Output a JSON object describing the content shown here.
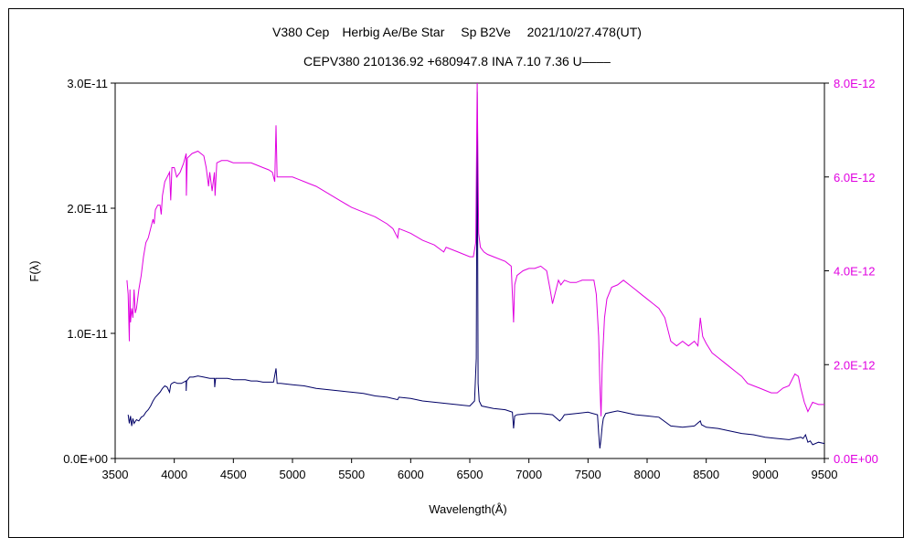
{
  "chart_data": {
    "type": "line",
    "title": "V380 Cep　Herbig Ae/Be Star　 Sp B2Ve　 2021/10/27.478(UT)",
    "subtitle": "CEPV380 210136.92 +680947.8 INA 7.10 7.36 U––––",
    "xlabel": "Wavelength(Å)",
    "ylabel": "F(λ)",
    "xlim": [
      3500,
      9500
    ],
    "ylim": [
      0,
      3e-11
    ],
    "y2lim": [
      0,
      8e-12
    ],
    "x_ticks": [
      "3500",
      "4000",
      "4500",
      "5000",
      "5500",
      "6000",
      "6500",
      "7000",
      "7500",
      "8000",
      "8500",
      "9000",
      "9500"
    ],
    "y_ticks": [
      "0.0E+00",
      "1.0E-11",
      "2.0E-11",
      "3.0E-11"
    ],
    "y2_ticks": [
      "0.0E+00",
      "2.0E-12",
      "4.0E-12",
      "6.0E-12",
      "8.0E-12"
    ],
    "grid": false,
    "series": [
      {
        "axis": "left",
        "color": "#000066",
        "x": [
          3610,
          3620,
          3630,
          3640,
          3650,
          3660,
          3680,
          3700,
          3720,
          3740,
          3760,
          3780,
          3800,
          3820,
          3840,
          3860,
          3880,
          3900,
          3920,
          3940,
          3960,
          3970,
          3980,
          4000,
          4030,
          4060,
          4100,
          4101,
          4105,
          4130,
          4160,
          4200,
          4250,
          4300,
          4340,
          4342,
          4350,
          4400,
          4450,
          4500,
          4550,
          4600,
          4650,
          4700,
          4750,
          4800,
          4840,
          4861,
          4870,
          4900,
          5000,
          5100,
          5200,
          5300,
          5400,
          5500,
          5600,
          5700,
          5800,
          5890,
          5900,
          6000,
          6100,
          6200,
          6300,
          6400,
          6500,
          6540,
          6555,
          6563,
          6570,
          6580,
          6600,
          6700,
          6800,
          6860,
          6870,
          6880,
          6900,
          7000,
          7100,
          7200,
          7260,
          7280,
          7300,
          7400,
          7500,
          7580,
          7590,
          7600,
          7610,
          7620,
          7630,
          7650,
          7700,
          7750,
          7800,
          7900,
          8000,
          8100,
          8200,
          8300,
          8400,
          8450,
          8460,
          8500,
          8600,
          8700,
          8800,
          8900,
          9000,
          9100,
          9200,
          9300,
          9320,
          9340,
          9360,
          9380,
          9400,
          9450,
          9500
        ],
        "y": [
          3.5e-12,
          2.8e-12,
          3.4e-12,
          2.6e-12,
          3.2e-12,
          2.8e-12,
          3.1e-12,
          3e-12,
          3.3e-12,
          3.4e-12,
          3.7e-12,
          3.9e-12,
          4.2e-12,
          4.6e-12,
          4.9e-12,
          5.1e-12,
          5.3e-12,
          5.6e-12,
          5.8e-12,
          5.7e-12,
          5.3e-12,
          5.9e-12,
          6e-12,
          6.1e-12,
          6e-12,
          6e-12,
          6.2e-12,
          5.4e-12,
          6.2e-12,
          6.5e-12,
          6.5e-12,
          6.6e-12,
          6.5e-12,
          6.4e-12,
          6.4e-12,
          5.7e-12,
          6.4e-12,
          6.4e-12,
          6.4e-12,
          6.3e-12,
          6.3e-12,
          6.3e-12,
          6.2e-12,
          6.2e-12,
          6.1e-12,
          6.1e-12,
          6.1e-12,
          7.2e-12,
          6e-12,
          6e-12,
          5.9e-12,
          5.8e-12,
          5.6e-12,
          5.5e-12,
          5.4e-12,
          5.3e-12,
          5.2e-12,
          5e-12,
          4.9e-12,
          4.7e-12,
          4.9e-12,
          4.8e-12,
          4.6e-12,
          4.5e-12,
          4.4e-12,
          4.3e-12,
          4.2e-12,
          4.6e-12,
          8e-12,
          2.93e-11,
          6e-12,
          4.6e-12,
          4.2e-12,
          4e-12,
          3.9e-12,
          3.7e-12,
          2.4e-12,
          3.4e-12,
          3.5e-12,
          3.6e-12,
          3.6e-12,
          3.5e-12,
          3e-12,
          3.2e-12,
          3.5e-12,
          3.6e-12,
          3.7e-12,
          3.5e-12,
          2e-12,
          8e-13,
          1.6e-12,
          2.6e-12,
          3.2e-12,
          3.6e-12,
          3.7e-12,
          3.8e-12,
          3.7e-12,
          3.5e-12,
          3.4e-12,
          3.3e-12,
          2.6e-12,
          2.5e-12,
          2.6e-12,
          3e-12,
          2.7e-12,
          2.5e-12,
          2.4e-12,
          2.2e-12,
          2e-12,
          1.9e-12,
          1.7e-12,
          1.6e-12,
          1.5e-12,
          1.7e-12,
          1.6e-12,
          1.9e-12,
          1.3e-12,
          1.4e-12,
          1.1e-12,
          1.3e-12,
          1.2e-12
        ]
      },
      {
        "axis": "right",
        "color": "#e000e0",
        "x": [
          3600,
          3610,
          3620,
          3625,
          3630,
          3640,
          3650,
          3660,
          3670,
          3680,
          3690,
          3700,
          3720,
          3740,
          3760,
          3780,
          3800,
          3820,
          3830,
          3840,
          3860,
          3880,
          3890,
          3900,
          3920,
          3940,
          3960,
          3970,
          3980,
          4000,
          4020,
          4050,
          4080,
          4101,
          4102,
          4110,
          4150,
          4200,
          4250,
          4270,
          4290,
          4300,
          4320,
          4340,
          4345,
          4360,
          4400,
          4450,
          4500,
          4550,
          4600,
          4650,
          4700,
          4750,
          4800,
          4830,
          4850,
          4861,
          4870,
          4900,
          4950,
          5000,
          5050,
          5100,
          5150,
          5200,
          5300,
          5400,
          5500,
          5600,
          5700,
          5800,
          5850,
          5890,
          5900,
          5950,
          6000,
          6100,
          6200,
          6280,
          6300,
          6400,
          6450,
          6500,
          6530,
          6550,
          6563,
          6575,
          6590,
          6620,
          6650,
          6700,
          6800,
          6850,
          6870,
          6880,
          6900,
          6950,
          7000,
          7050,
          7100,
          7150,
          7180,
          7200,
          7250,
          7270,
          7300,
          7350,
          7400,
          7450,
          7500,
          7550,
          7570,
          7590,
          7600,
          7610,
          7620,
          7640,
          7660,
          7700,
          7750,
          7800,
          7850,
          7900,
          7950,
          8000,
          8050,
          8100,
          8150,
          8200,
          8250,
          8300,
          8350,
          8400,
          8430,
          8450,
          8470,
          8500,
          8550,
          8600,
          8650,
          8700,
          8750,
          8800,
          8850,
          8900,
          8950,
          9000,
          9050,
          9100,
          9150,
          9200,
          9250,
          9280,
          9300,
          9330,
          9360,
          9380,
          9400,
          9450,
          9500
        ],
        "y": [
          3.8e-12,
          3.5e-12,
          2.5e-12,
          3.6e-12,
          2.9e-12,
          3.2e-12,
          3e-12,
          3.6e-12,
          3.1e-12,
          3.2e-12,
          3.4e-12,
          3.6e-12,
          3.9e-12,
          4.3e-12,
          4.6e-12,
          4.7e-12,
          4.9e-12,
          5.1e-12,
          5e-12,
          5.3e-12,
          5.4e-12,
          5.4e-12,
          5.2e-12,
          5.6e-12,
          5.9e-12,
          6e-12,
          6.1e-12,
          5.5e-12,
          6.2e-12,
          6.2e-12,
          6e-12,
          6.1e-12,
          6.3e-12,
          6.5e-12,
          5.6e-12,
          6.4e-12,
          6.5e-12,
          6.55e-12,
          6.45e-12,
          6.2e-12,
          5.8e-12,
          6.1e-12,
          5.7e-12,
          6.1e-12,
          5.6e-12,
          6.3e-12,
          6.35e-12,
          6.35e-12,
          6.3e-12,
          6.3e-12,
          6.3e-12,
          6.3e-12,
          6.25e-12,
          6.2e-12,
          6.15e-12,
          6.1e-12,
          5.9e-12,
          7.1e-12,
          6e-12,
          6e-12,
          6e-12,
          6e-12,
          5.95e-12,
          5.9e-12,
          5.85e-12,
          5.8e-12,
          5.65e-12,
          5.5e-12,
          5.35e-12,
          5.25e-12,
          5.15e-12,
          5e-12,
          4.9e-12,
          4.7e-12,
          4.9e-12,
          4.85e-12,
          4.8e-12,
          4.65e-12,
          4.55e-12,
          4.4e-12,
          4.5e-12,
          4.4e-12,
          4.35e-12,
          4.3e-12,
          4.3e-12,
          4.6e-12,
          8e-12,
          4.8e-12,
          4.5e-12,
          4.4e-12,
          4.35e-12,
          4.3e-12,
          4.2e-12,
          4.1e-12,
          2.9e-12,
          3.7e-12,
          3.9e-12,
          4e-12,
          4.05e-12,
          4.05e-12,
          4.1e-12,
          4e-12,
          3.6e-12,
          3.3e-12,
          3.8e-12,
          3.7e-12,
          3.8e-12,
          3.75e-12,
          3.75e-12,
          3.8e-12,
          3.8e-12,
          3.8e-12,
          3.5e-12,
          2.6e-12,
          1.6e-12,
          9e-13,
          2e-12,
          3e-12,
          3.4e-12,
          3.65e-12,
          3.7e-12,
          3.8e-12,
          3.7e-12,
          3.6e-12,
          3.5e-12,
          3.4e-12,
          3.3e-12,
          3.2e-12,
          3e-12,
          2.5e-12,
          2.4e-12,
          2.5e-12,
          2.4e-12,
          2.5e-12,
          2.4e-12,
          3e-12,
          2.6e-12,
          2.45e-12,
          2.25e-12,
          2.15e-12,
          2.05e-12,
          1.95e-12,
          1.85e-12,
          1.75e-12,
          1.6e-12,
          1.55e-12,
          1.5e-12,
          1.45e-12,
          1.4e-12,
          1.4e-12,
          1.5e-12,
          1.55e-12,
          1.8e-12,
          1.75e-12,
          1.5e-12,
          1.2e-12,
          1e-12,
          1.1e-12,
          1.2e-12,
          1.15e-12,
          1.15e-12
        ]
      }
    ]
  }
}
